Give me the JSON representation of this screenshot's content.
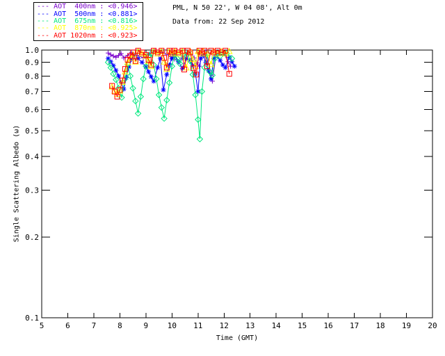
{
  "chart_data": {
    "type": "line",
    "title": "PML, N 50 22', W 04 08', Alt 0m",
    "subtitle": "Data from: 22 Sep 2012",
    "xlabel": "Time (GMT)",
    "ylabel": "Single Scattering Albedo (ω)",
    "xlim": [
      5,
      20
    ],
    "ylim": [
      0.1,
      1.0
    ],
    "yscale": "log",
    "grid": false,
    "legend_position": "top-left-above-plot",
    "xticks": [
      5,
      6,
      7,
      8,
      9,
      10,
      11,
      12,
      13,
      14,
      15,
      16,
      17,
      18,
      19,
      20
    ],
    "xtick_labels": [
      "5",
      "6",
      "7",
      "8",
      "9",
      "10",
      "11",
      "12",
      "13",
      "14",
      "15",
      "16",
      "17",
      "18",
      "19",
      "20"
    ],
    "yticks": [
      1.0,
      0.9,
      0.8,
      0.7,
      0.6,
      0.5,
      0.4,
      0.3,
      0.2,
      0.1
    ],
    "ytick_labels": [
      "1.0",
      "0.9",
      "0.8",
      "0.7",
      "0.6",
      "0.5",
      "0.4",
      "0.3",
      "0.2",
      "0.1"
    ],
    "axis_color": "#000000",
    "background_color": "#ffffff",
    "series": [
      {
        "name": "AOT  400nm",
        "legend_mean": "<0.946>",
        "color": "#7a00cc",
        "marker": "plus",
        "linestyle": "solid",
        "points": [
          [
            7.55,
            0.975
          ],
          [
            7.65,
            0.96
          ],
          [
            7.75,
            0.95
          ],
          [
            7.85,
            0.94
          ],
          [
            7.95,
            0.955
          ],
          [
            8.05,
            0.97
          ],
          [
            8.15,
            0.935
          ],
          [
            8.3,
            0.955
          ],
          [
            8.45,
            0.98
          ],
          [
            8.6,
            0.97
          ],
          [
            8.75,
            0.95
          ],
          [
            8.9,
            0.935
          ],
          [
            9.05,
            0.955
          ],
          [
            9.2,
            0.975
          ],
          [
            9.35,
            0.99
          ],
          [
            9.5,
            0.975
          ],
          [
            9.65,
            0.985
          ],
          [
            9.8,
            0.965
          ],
          [
            9.95,
            0.945
          ],
          [
            10.1,
            0.925
          ],
          [
            10.25,
            0.905
          ],
          [
            10.4,
            0.935
          ],
          [
            10.55,
            0.965
          ],
          [
            10.7,
            0.985
          ],
          [
            10.85,
            0.935
          ],
          [
            10.95,
            0.895
          ],
          [
            11.05,
            0.87
          ],
          [
            11.15,
            0.95
          ],
          [
            11.3,
            0.985
          ],
          [
            11.45,
            0.83
          ],
          [
            11.55,
            0.765
          ],
          [
            11.7,
            0.97
          ],
          [
            11.85,
            0.985
          ],
          [
            12.0,
            0.97
          ],
          [
            12.15,
            0.905
          ],
          [
            12.25,
            0.87
          ]
        ]
      },
      {
        "name": "AOT  500nm",
        "legend_mean": "<0.881>",
        "color": "#0000ff",
        "marker": "asterisk",
        "linestyle": "solid",
        "points": [
          [
            7.55,
            0.93
          ],
          [
            7.65,
            0.905
          ],
          [
            7.75,
            0.875
          ],
          [
            7.85,
            0.84
          ],
          [
            7.95,
            0.8
          ],
          [
            8.05,
            0.755
          ],
          [
            8.15,
            0.715
          ],
          [
            8.25,
            0.79
          ],
          [
            8.35,
            0.865
          ],
          [
            8.45,
            0.925
          ],
          [
            8.55,
            0.955
          ],
          [
            8.7,
            0.93
          ],
          [
            8.85,
            0.9
          ],
          [
            9.0,
            0.865
          ],
          [
            9.1,
            0.83
          ],
          [
            9.2,
            0.795
          ],
          [
            9.3,
            0.765
          ],
          [
            9.45,
            0.86
          ],
          [
            9.55,
            0.93
          ],
          [
            9.67,
            0.71
          ],
          [
            9.8,
            0.81
          ],
          [
            9.9,
            0.88
          ],
          [
            10.0,
            0.93
          ],
          [
            10.1,
            0.955
          ],
          [
            10.25,
            0.905
          ],
          [
            10.4,
            0.855
          ],
          [
            10.55,
            0.93
          ],
          [
            10.7,
            0.915
          ],
          [
            10.8,
            0.875
          ],
          [
            10.9,
            0.815
          ],
          [
            11.0,
            0.7
          ],
          [
            11.1,
            0.93
          ],
          [
            11.2,
            0.955
          ],
          [
            11.3,
            0.9
          ],
          [
            11.4,
            0.84
          ],
          [
            11.5,
            0.78
          ],
          [
            11.6,
            0.93
          ],
          [
            11.7,
            0.955
          ],
          [
            11.85,
            0.915
          ],
          [
            11.95,
            0.88
          ],
          [
            12.05,
            0.86
          ],
          [
            12.2,
            0.94
          ],
          [
            12.3,
            0.905
          ],
          [
            12.4,
            0.87
          ]
        ]
      },
      {
        "name": "AOT  675nm",
        "legend_mean": "<0.816>",
        "color": "#00e87e",
        "marker": "diamond",
        "linestyle": "solid",
        "points": [
          [
            7.55,
            0.9
          ],
          [
            7.65,
            0.86
          ],
          [
            7.75,
            0.815
          ],
          [
            7.85,
            0.775
          ],
          [
            7.95,
            0.72
          ],
          [
            8.07,
            0.665
          ],
          [
            8.2,
            0.78
          ],
          [
            8.3,
            0.885
          ],
          [
            8.4,
            0.8
          ],
          [
            8.5,
            0.72
          ],
          [
            8.6,
            0.645
          ],
          [
            8.7,
            0.58
          ],
          [
            8.8,
            0.67
          ],
          [
            8.9,
            0.78
          ],
          [
            9.0,
            0.87
          ],
          [
            9.1,
            0.95
          ],
          [
            9.2,
            0.97
          ],
          [
            9.3,
            0.88
          ],
          [
            9.4,
            0.78
          ],
          [
            9.5,
            0.68
          ],
          [
            9.6,
            0.61
          ],
          [
            9.7,
            0.555
          ],
          [
            9.8,
            0.65
          ],
          [
            9.9,
            0.755
          ],
          [
            10.0,
            0.87
          ],
          [
            10.1,
            0.97
          ],
          [
            10.2,
            0.93
          ],
          [
            10.3,
            0.89
          ],
          [
            10.45,
            0.95
          ],
          [
            10.6,
            0.97
          ],
          [
            10.7,
            0.91
          ],
          [
            10.8,
            0.81
          ],
          [
            10.9,
            0.68
          ],
          [
            11.0,
            0.55
          ],
          [
            11.07,
            0.465
          ],
          [
            11.15,
            0.7
          ],
          [
            11.25,
            0.86
          ],
          [
            11.35,
            0.97
          ],
          [
            11.45,
            0.83
          ],
          [
            11.55,
            0.805
          ],
          [
            11.65,
            0.93
          ],
          [
            11.75,
            0.97
          ],
          [
            11.85,
            0.95
          ],
          [
            11.95,
            0.97
          ],
          [
            12.1,
            0.97
          ],
          [
            12.3,
            0.93
          ]
        ]
      },
      {
        "name": "AOT  870nm",
        "legend_mean": "<0.925>",
        "color": "#ffff00",
        "marker": "triangle",
        "linestyle": "solid",
        "points": [
          [
            7.7,
            0.73
          ],
          [
            7.8,
            0.705
          ],
          [
            7.9,
            0.685
          ],
          [
            8.0,
            0.705
          ],
          [
            8.1,
            0.76
          ],
          [
            8.2,
            0.83
          ],
          [
            8.3,
            0.9
          ],
          [
            8.4,
            0.935
          ],
          [
            8.5,
            0.965
          ],
          [
            8.6,
            0.905
          ],
          [
            8.7,
            0.99
          ],
          [
            8.85,
            0.97
          ],
          [
            9.0,
            0.95
          ],
          [
            9.1,
            0.91
          ],
          [
            9.2,
            0.87
          ],
          [
            9.3,
            0.99
          ],
          [
            9.45,
            0.97
          ],
          [
            9.6,
            0.99
          ],
          [
            9.7,
            0.905
          ],
          [
            9.8,
            0.85
          ],
          [
            9.9,
            0.99
          ],
          [
            10.0,
            0.97
          ],
          [
            10.1,
            0.99
          ],
          [
            10.25,
            0.97
          ],
          [
            10.4,
            0.99
          ],
          [
            10.55,
            0.86
          ],
          [
            10.7,
            0.99
          ],
          [
            10.8,
            0.925
          ],
          [
            10.9,
            0.87
          ],
          [
            11.0,
            0.99
          ],
          [
            11.1,
            0.97
          ],
          [
            11.2,
            0.99
          ],
          [
            11.35,
            0.97
          ],
          [
            11.5,
            0.885
          ],
          [
            11.6,
            0.99
          ],
          [
            11.75,
            0.97
          ],
          [
            11.9,
            0.99
          ],
          [
            12.05,
            0.97
          ],
          [
            12.2,
            0.99
          ]
        ]
      },
      {
        "name": "AOT 1020nm",
        "legend_mean": "<0.923>",
        "color": "#ff0000",
        "marker": "square",
        "linestyle": "solid",
        "points": [
          [
            7.7,
            0.735
          ],
          [
            7.8,
            0.7
          ],
          [
            7.9,
            0.67
          ],
          [
            8.0,
            0.71
          ],
          [
            8.1,
            0.77
          ],
          [
            8.2,
            0.85
          ],
          [
            8.3,
            0.92
          ],
          [
            8.4,
            0.95
          ],
          [
            8.5,
            0.98
          ],
          [
            8.6,
            0.91
          ],
          [
            8.7,
            0.995
          ],
          [
            8.85,
            0.98
          ],
          [
            9.0,
            0.96
          ],
          [
            9.1,
            0.92
          ],
          [
            9.2,
            0.88
          ],
          [
            9.3,
            0.995
          ],
          [
            9.45,
            0.98
          ],
          [
            9.6,
            0.995
          ],
          [
            9.7,
            0.935
          ],
          [
            9.8,
            0.86
          ],
          [
            9.9,
            0.995
          ],
          [
            10.0,
            0.98
          ],
          [
            10.1,
            0.995
          ],
          [
            10.25,
            0.98
          ],
          [
            10.4,
            0.995
          ],
          [
            10.47,
            0.846
          ],
          [
            10.6,
            0.995
          ],
          [
            10.7,
            0.98
          ],
          [
            10.82,
            0.855
          ],
          [
            10.93,
            0.81
          ],
          [
            11.05,
            0.995
          ],
          [
            11.15,
            0.98
          ],
          [
            11.25,
            0.995
          ],
          [
            11.35,
            0.87
          ],
          [
            11.5,
            0.995
          ],
          [
            11.6,
            0.98
          ],
          [
            11.75,
            0.995
          ],
          [
            11.9,
            0.98
          ],
          [
            12.05,
            0.995
          ],
          [
            12.2,
            0.815
          ]
        ]
      }
    ]
  }
}
